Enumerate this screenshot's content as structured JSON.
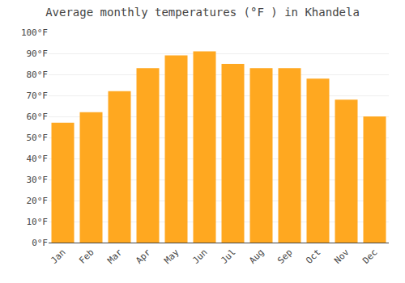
{
  "chart_data": {
    "type": "bar",
    "title": "Average monthly temperatures (°F ) in Khandela",
    "categories": [
      "Jan",
      "Feb",
      "Mar",
      "Apr",
      "May",
      "Jun",
      "Jul",
      "Aug",
      "Sep",
      "Oct",
      "Nov",
      "Dec"
    ],
    "values": [
      57,
      62,
      72,
      83,
      89,
      91,
      85,
      83,
      83,
      78,
      68,
      60
    ],
    "color": "#FFA820",
    "ylim": [
      0,
      100
    ],
    "yticks": [
      {
        "value": 0,
        "label": "0°F"
      },
      {
        "value": 10,
        "label": "10°F"
      },
      {
        "value": 20,
        "label": "20°F"
      },
      {
        "value": 30,
        "label": "30°F"
      },
      {
        "value": 40,
        "label": "40°F"
      },
      {
        "value": 50,
        "label": "50°F"
      },
      {
        "value": 60,
        "label": "60°F"
      },
      {
        "value": 70,
        "label": "70°F"
      },
      {
        "value": 80,
        "label": "80°F"
      },
      {
        "value": 90,
        "label": "90°F"
      },
      {
        "value": 100,
        "label": "100°F"
      }
    ],
    "grid": true
  }
}
